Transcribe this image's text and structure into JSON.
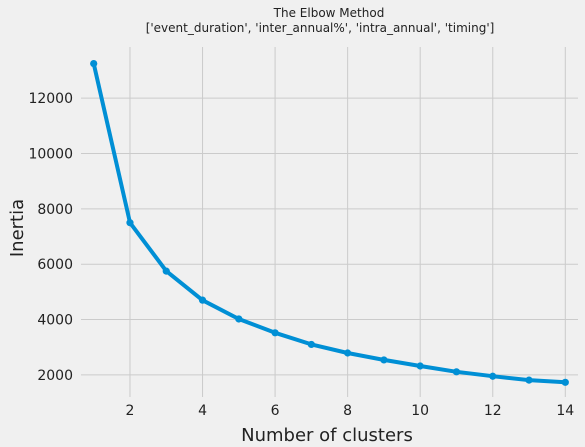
{
  "chart_data": {
    "type": "line",
    "title": "The Elbow Method",
    "subtitle": "['event_duration', 'inter_annual%', 'intra_annual', 'timing']",
    "xlabel": "Number of clusters",
    "ylabel": "Inertia",
    "x": [
      1,
      2,
      3,
      4,
      5,
      6,
      7,
      8,
      9,
      10,
      11,
      12,
      13,
      14
    ],
    "series": [
      {
        "name": "inertia",
        "color": "#008fd5",
        "values": [
          13250,
          7500,
          5750,
          4700,
          4020,
          3520,
          3100,
          2790,
          2540,
          2320,
          2110,
          1950,
          1810,
          1730
        ]
      }
    ],
    "xticks": [
      2,
      4,
      6,
      8,
      10,
      12,
      14
    ],
    "yticks": [
      2000,
      4000,
      6000,
      8000,
      10000,
      12000
    ],
    "xlim": [
      0.65,
      14.35
    ],
    "ylim": [
      1200,
      13850
    ],
    "grid": true,
    "legend": "none"
  },
  "colors": {
    "background": "#f0f0f0",
    "grid": "#cbcbcb",
    "line": "#008fd5",
    "text": "#222222"
  }
}
